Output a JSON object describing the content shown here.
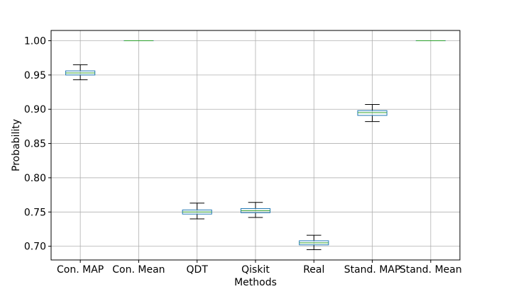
{
  "chart_data": {
    "type": "box",
    "xlabel": "Methods",
    "ylabel": "Probability",
    "ylim": [
      0.68,
      1.015
    ],
    "yticks": [
      "0.70",
      "0.75",
      "0.80",
      "0.85",
      "0.90",
      "0.95",
      "1.00"
    ],
    "grid": true,
    "colors": {
      "box": "#1f77b4",
      "median": "#2ca02c",
      "whisker": "#000000",
      "grid": "#b0b0b0"
    },
    "categories": [
      "Con. MAP",
      "Con. Mean",
      "QDT",
      "Qiskit",
      "Real",
      "Stand. MAP",
      "Stand. Mean"
    ],
    "boxes": [
      {
        "category": "Con. MAP",
        "min": 0.943,
        "q1": 0.95,
        "median": 0.953,
        "q3": 0.956,
        "max": 0.965
      },
      {
        "category": "Con. Mean",
        "min": 1.0,
        "q1": 1.0,
        "median": 1.0,
        "q3": 1.0,
        "max": 1.0
      },
      {
        "category": "QDT",
        "min": 0.74,
        "q1": 0.747,
        "median": 0.75,
        "q3": 0.753,
        "max": 0.763
      },
      {
        "category": "Qiskit",
        "min": 0.742,
        "q1": 0.749,
        "median": 0.752,
        "q3": 0.755,
        "max": 0.764
      },
      {
        "category": "Real",
        "min": 0.695,
        "q1": 0.702,
        "median": 0.705,
        "q3": 0.708,
        "max": 0.716
      },
      {
        "category": "Stand. MAP",
        "min": 0.882,
        "q1": 0.891,
        "median": 0.895,
        "q3": 0.898,
        "max": 0.907
      },
      {
        "category": "Stand. Mean",
        "min": 1.0,
        "q1": 1.0,
        "median": 1.0,
        "q3": 1.0,
        "max": 1.0
      }
    ]
  }
}
